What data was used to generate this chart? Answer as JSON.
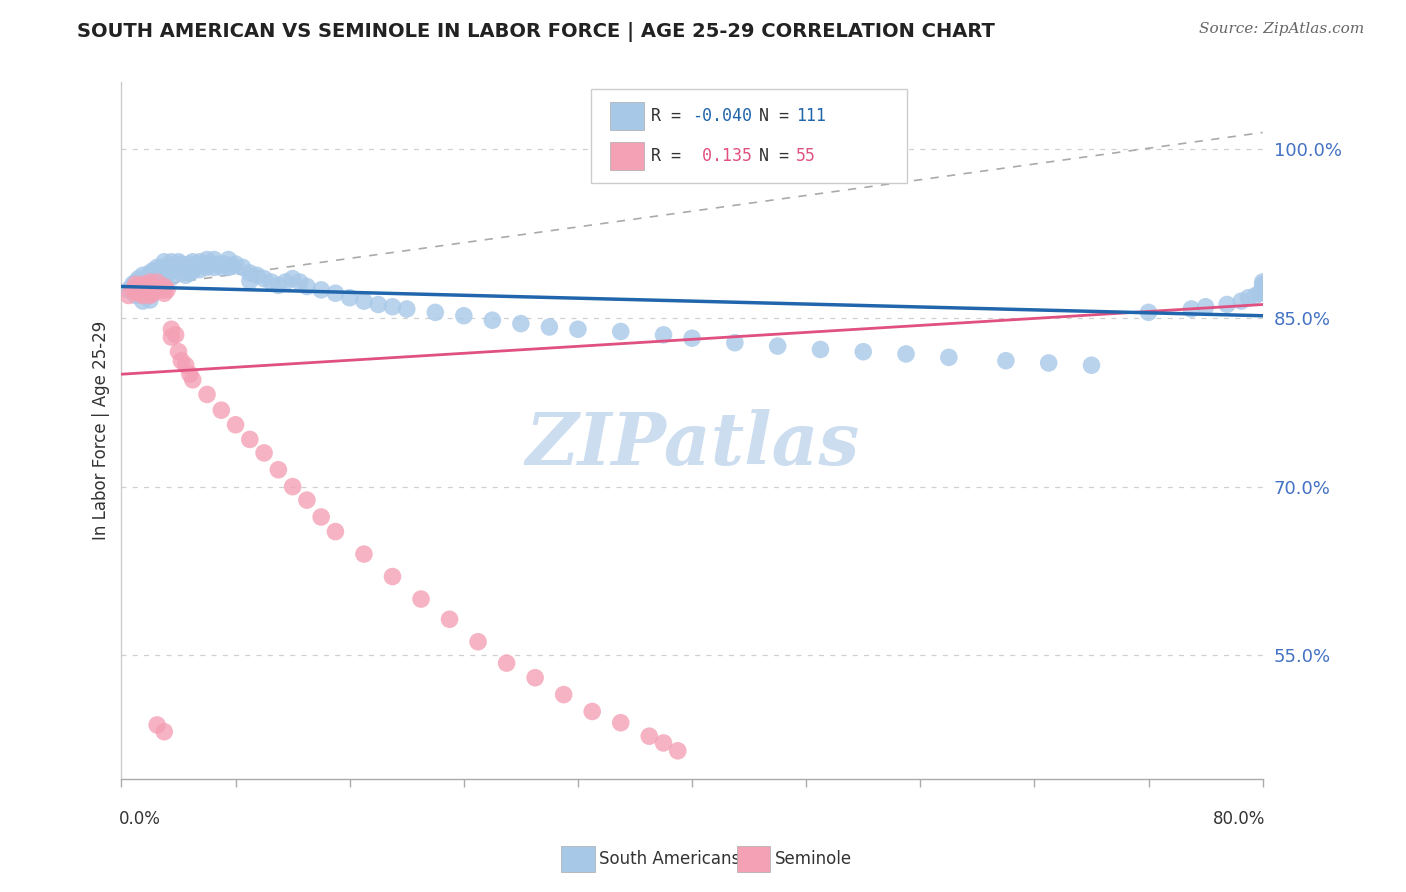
{
  "title": "SOUTH AMERICAN VS SEMINOLE IN LABOR FORCE | AGE 25-29 CORRELATION CHART",
  "source": "Source: ZipAtlas.com",
  "ylabel": "In Labor Force | Age 25-29",
  "ytick_labels": [
    "55.0%",
    "70.0%",
    "85.0%",
    "100.0%"
  ],
  "ytick_values": [
    0.55,
    0.7,
    0.85,
    1.0
  ],
  "xlim": [
    0.0,
    0.8
  ],
  "ylim": [
    0.44,
    1.06
  ],
  "legend_blue_r": "-0.040",
  "legend_blue_n": "111",
  "legend_pink_r": "0.135",
  "legend_pink_n": "55",
  "legend_label_blue": "South Americans",
  "legend_label_pink": "Seminole",
  "blue_color": "#a8c8e8",
  "pink_color": "#f4a0b5",
  "blue_line_color": "#2166ac",
  "pink_line_color": "#e05080",
  "watermark_text": "ZIPatlas",
  "watermark_color": "#ccddf0",
  "background_color": "#ffffff",
  "grid_color": "#d0d0d0",
  "ytick_color": "#4472c4",
  "title_color": "#222222",
  "source_color": "#666666",
  "blue_x": [
    0.005,
    0.008,
    0.01,
    0.01,
    0.01,
    0.012,
    0.012,
    0.013,
    0.015,
    0.015,
    0.015,
    0.015,
    0.015,
    0.018,
    0.018,
    0.02,
    0.02,
    0.02,
    0.02,
    0.02,
    0.022,
    0.022,
    0.025,
    0.025,
    0.025,
    0.025,
    0.028,
    0.028,
    0.03,
    0.03,
    0.03,
    0.032,
    0.032,
    0.035,
    0.035,
    0.035,
    0.038,
    0.04,
    0.04,
    0.042,
    0.042,
    0.045,
    0.045,
    0.048,
    0.048,
    0.05,
    0.05,
    0.052,
    0.055,
    0.055,
    0.058,
    0.06,
    0.06,
    0.062,
    0.065,
    0.065,
    0.068,
    0.07,
    0.072,
    0.075,
    0.075,
    0.078,
    0.08,
    0.085,
    0.09,
    0.09,
    0.095,
    0.1,
    0.105,
    0.11,
    0.115,
    0.12,
    0.125,
    0.13,
    0.14,
    0.15,
    0.16,
    0.17,
    0.18,
    0.19,
    0.2,
    0.22,
    0.24,
    0.26,
    0.28,
    0.3,
    0.32,
    0.35,
    0.38,
    0.4,
    0.43,
    0.46,
    0.49,
    0.52,
    0.55,
    0.58,
    0.62,
    0.65,
    0.68,
    0.72,
    0.75,
    0.76,
    0.775,
    0.785,
    0.79,
    0.795,
    0.798,
    0.8,
    0.8,
    0.8,
    0.8
  ],
  "blue_y": [
    0.875,
    0.88,
    0.882,
    0.876,
    0.87,
    0.885,
    0.878,
    0.872,
    0.888,
    0.882,
    0.876,
    0.87,
    0.865,
    0.885,
    0.878,
    0.89,
    0.885,
    0.878,
    0.872,
    0.866,
    0.892,
    0.886,
    0.895,
    0.888,
    0.882,
    0.876,
    0.895,
    0.888,
    0.9,
    0.893,
    0.886,
    0.895,
    0.888,
    0.9,
    0.893,
    0.886,
    0.895,
    0.9,
    0.893,
    0.898,
    0.89,
    0.895,
    0.888,
    0.898,
    0.89,
    0.9,
    0.892,
    0.895,
    0.9,
    0.893,
    0.898,
    0.902,
    0.895,
    0.898,
    0.902,
    0.895,
    0.898,
    0.895,
    0.898,
    0.902,
    0.895,
    0.896,
    0.898,
    0.895,
    0.89,
    0.883,
    0.888,
    0.885,
    0.882,
    0.879,
    0.882,
    0.885,
    0.882,
    0.878,
    0.875,
    0.872,
    0.868,
    0.865,
    0.862,
    0.86,
    0.858,
    0.855,
    0.852,
    0.848,
    0.845,
    0.842,
    0.84,
    0.838,
    0.835,
    0.832,
    0.828,
    0.825,
    0.822,
    0.82,
    0.818,
    0.815,
    0.812,
    0.81,
    0.808,
    0.855,
    0.858,
    0.86,
    0.862,
    0.865,
    0.868,
    0.87,
    0.872,
    0.875,
    0.878,
    0.88,
    0.882
  ],
  "pink_x": [
    0.005,
    0.008,
    0.01,
    0.01,
    0.012,
    0.013,
    0.015,
    0.015,
    0.015,
    0.018,
    0.018,
    0.02,
    0.02,
    0.02,
    0.022,
    0.022,
    0.025,
    0.025,
    0.028,
    0.03,
    0.03,
    0.032,
    0.035,
    0.035,
    0.038,
    0.04,
    0.042,
    0.045,
    0.048,
    0.05,
    0.06,
    0.07,
    0.08,
    0.09,
    0.1,
    0.11,
    0.12,
    0.13,
    0.14,
    0.15,
    0.17,
    0.19,
    0.21,
    0.23,
    0.25,
    0.27,
    0.29,
    0.31,
    0.33,
    0.35,
    0.37,
    0.38,
    0.39,
    0.025,
    0.03
  ],
  "pink_y": [
    0.87,
    0.875,
    0.88,
    0.873,
    0.878,
    0.872,
    0.88,
    0.875,
    0.87,
    0.878,
    0.872,
    0.882,
    0.876,
    0.87,
    0.878,
    0.872,
    0.882,
    0.876,
    0.875,
    0.878,
    0.872,
    0.875,
    0.84,
    0.833,
    0.835,
    0.82,
    0.812,
    0.808,
    0.8,
    0.795,
    0.782,
    0.768,
    0.755,
    0.742,
    0.73,
    0.715,
    0.7,
    0.688,
    0.673,
    0.66,
    0.64,
    0.62,
    0.6,
    0.582,
    0.562,
    0.543,
    0.53,
    0.515,
    0.5,
    0.49,
    0.478,
    0.472,
    0.465,
    0.488,
    0.482
  ]
}
